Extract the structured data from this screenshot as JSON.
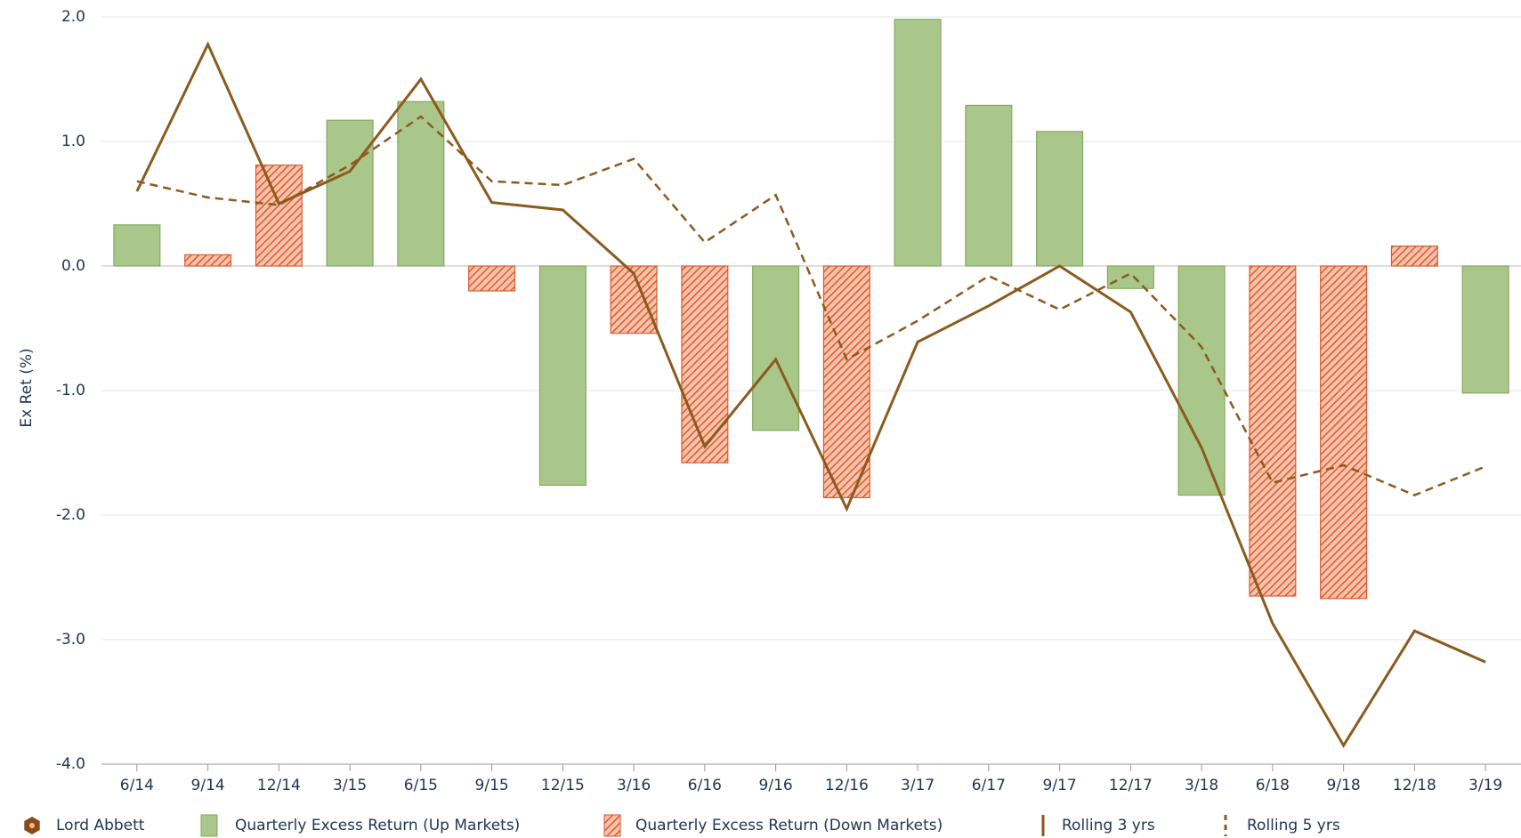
{
  "chart_data": {
    "type": "bar",
    "y_label": "Ex Ret (%)",
    "legend_label": "Lord Abbett",
    "legend_icon_color": "#8b4a1a",
    "categories": [
      "6/14",
      "9/14",
      "12/14",
      "3/15",
      "6/15",
      "9/15",
      "12/15",
      "3/16",
      "6/16",
      "9/16",
      "12/16",
      "3/17",
      "6/17",
      "9/17",
      "12/17",
      "3/18",
      "6/18",
      "9/18",
      "12/18",
      "3/19"
    ],
    "series": [
      {
        "name": "Quarterly Excess Return (Up Markets)",
        "type": "bar",
        "color": "#a9c78a",
        "stroke": "#82aa5f",
        "values": [
          0.33,
          null,
          null,
          1.17,
          1.32,
          null,
          -1.76,
          null,
          null,
          -1.32,
          null,
          1.98,
          1.29,
          1.08,
          -0.18,
          -1.84,
          null,
          null,
          null,
          -1.02
        ]
      },
      {
        "name": "Quarterly Excess Return (Down Markets)",
        "type": "bar",
        "color": "#f6c2aa",
        "stroke": "#dd5a30",
        "pattern": "hatch",
        "values": [
          null,
          0.09,
          0.81,
          null,
          null,
          -0.2,
          null,
          -0.54,
          -1.58,
          null,
          -1.86,
          null,
          null,
          null,
          null,
          null,
          -2.65,
          -2.67,
          0.16,
          null
        ]
      },
      {
        "name": "Rolling 3 yrs",
        "type": "line",
        "color": "#8b5a1e",
        "values": [
          0.6,
          1.78,
          0.5,
          0.76,
          1.5,
          0.51,
          0.45,
          -0.06,
          -1.45,
          -0.75,
          -1.95,
          -0.61,
          -0.32,
          0.0,
          -0.37,
          -1.46,
          -2.87,
          -3.85,
          -2.93,
          -3.18
        ]
      },
      {
        "name": "Rolling 5 yrs",
        "type": "line",
        "color": "#8b5a1e",
        "dashed": true,
        "values": [
          0.68,
          0.55,
          0.49,
          0.81,
          1.2,
          0.68,
          0.65,
          0.86,
          0.19,
          0.57,
          -0.75,
          -0.44,
          -0.08,
          -0.35,
          -0.06,
          -0.65,
          -1.74,
          -1.6,
          -1.84,
          -1.61
        ]
      }
    ],
    "ylim": [
      -4,
      2
    ],
    "yticks": [
      {
        "value": -4,
        "label": "-4.0"
      },
      {
        "value": -3,
        "label": "-3.0"
      },
      {
        "value": -2,
        "label": "-2.0"
      },
      {
        "value": -1,
        "label": "-1.0"
      },
      {
        "value": 0,
        "label": "0.0"
      },
      {
        "value": 1,
        "label": "1.0"
      },
      {
        "value": 2,
        "label": "2.0"
      }
    ],
    "grid": true
  }
}
